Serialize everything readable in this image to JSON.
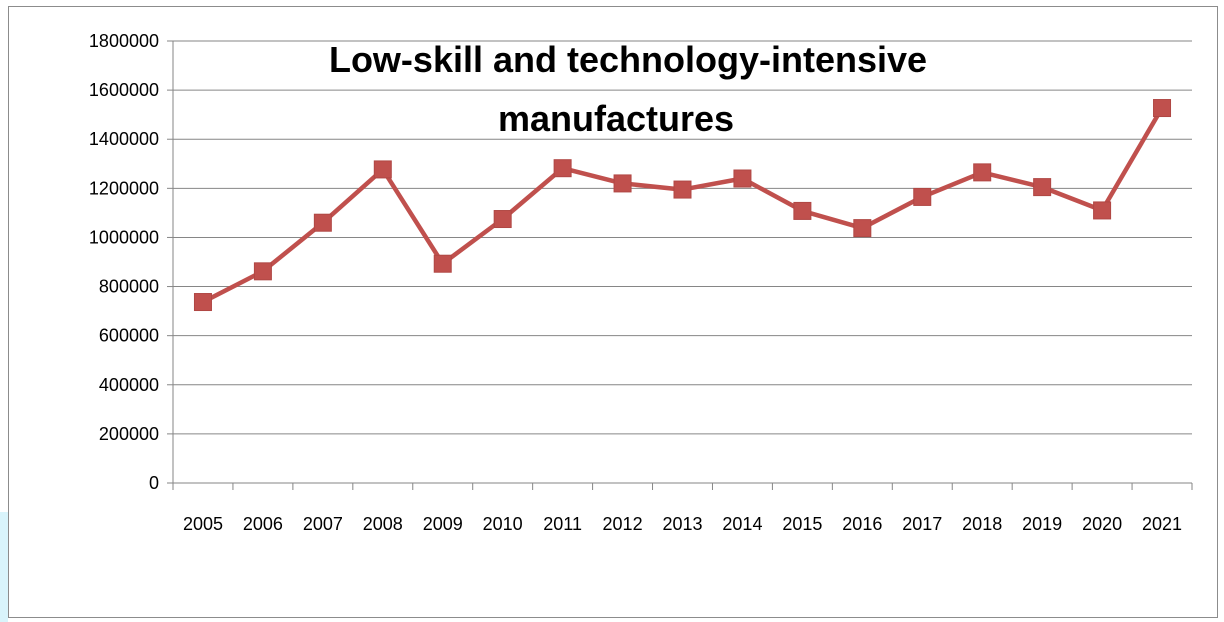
{
  "chart_data": {
    "type": "line",
    "title_lines": [
      "Low-skill and technology-intensive",
      "manufactures"
    ],
    "xlabel": "",
    "ylabel": "",
    "categories": [
      "2005",
      "2006",
      "2007",
      "2008",
      "2009",
      "2010",
      "2011",
      "2012",
      "2013",
      "2014",
      "2015",
      "2016",
      "2017",
      "2018",
      "2019",
      "2020",
      "2021"
    ],
    "series": [
      {
        "color": "#c0504d",
        "marker": "square",
        "values": [
          737000,
          862000,
          1060000,
          1277000,
          893000,
          1075000,
          1282000,
          1220000,
          1195000,
          1240000,
          1108000,
          1038000,
          1165000,
          1265000,
          1205000,
          1110000,
          1527000
        ]
      }
    ],
    "ylim": [
      0,
      1800000
    ],
    "yticks": [
      "0",
      "200000",
      "400000",
      "600000",
      "800000",
      "1000000",
      "1200000",
      "1400000",
      "1600000",
      "1800000"
    ],
    "grid": true,
    "legend": "none"
  }
}
